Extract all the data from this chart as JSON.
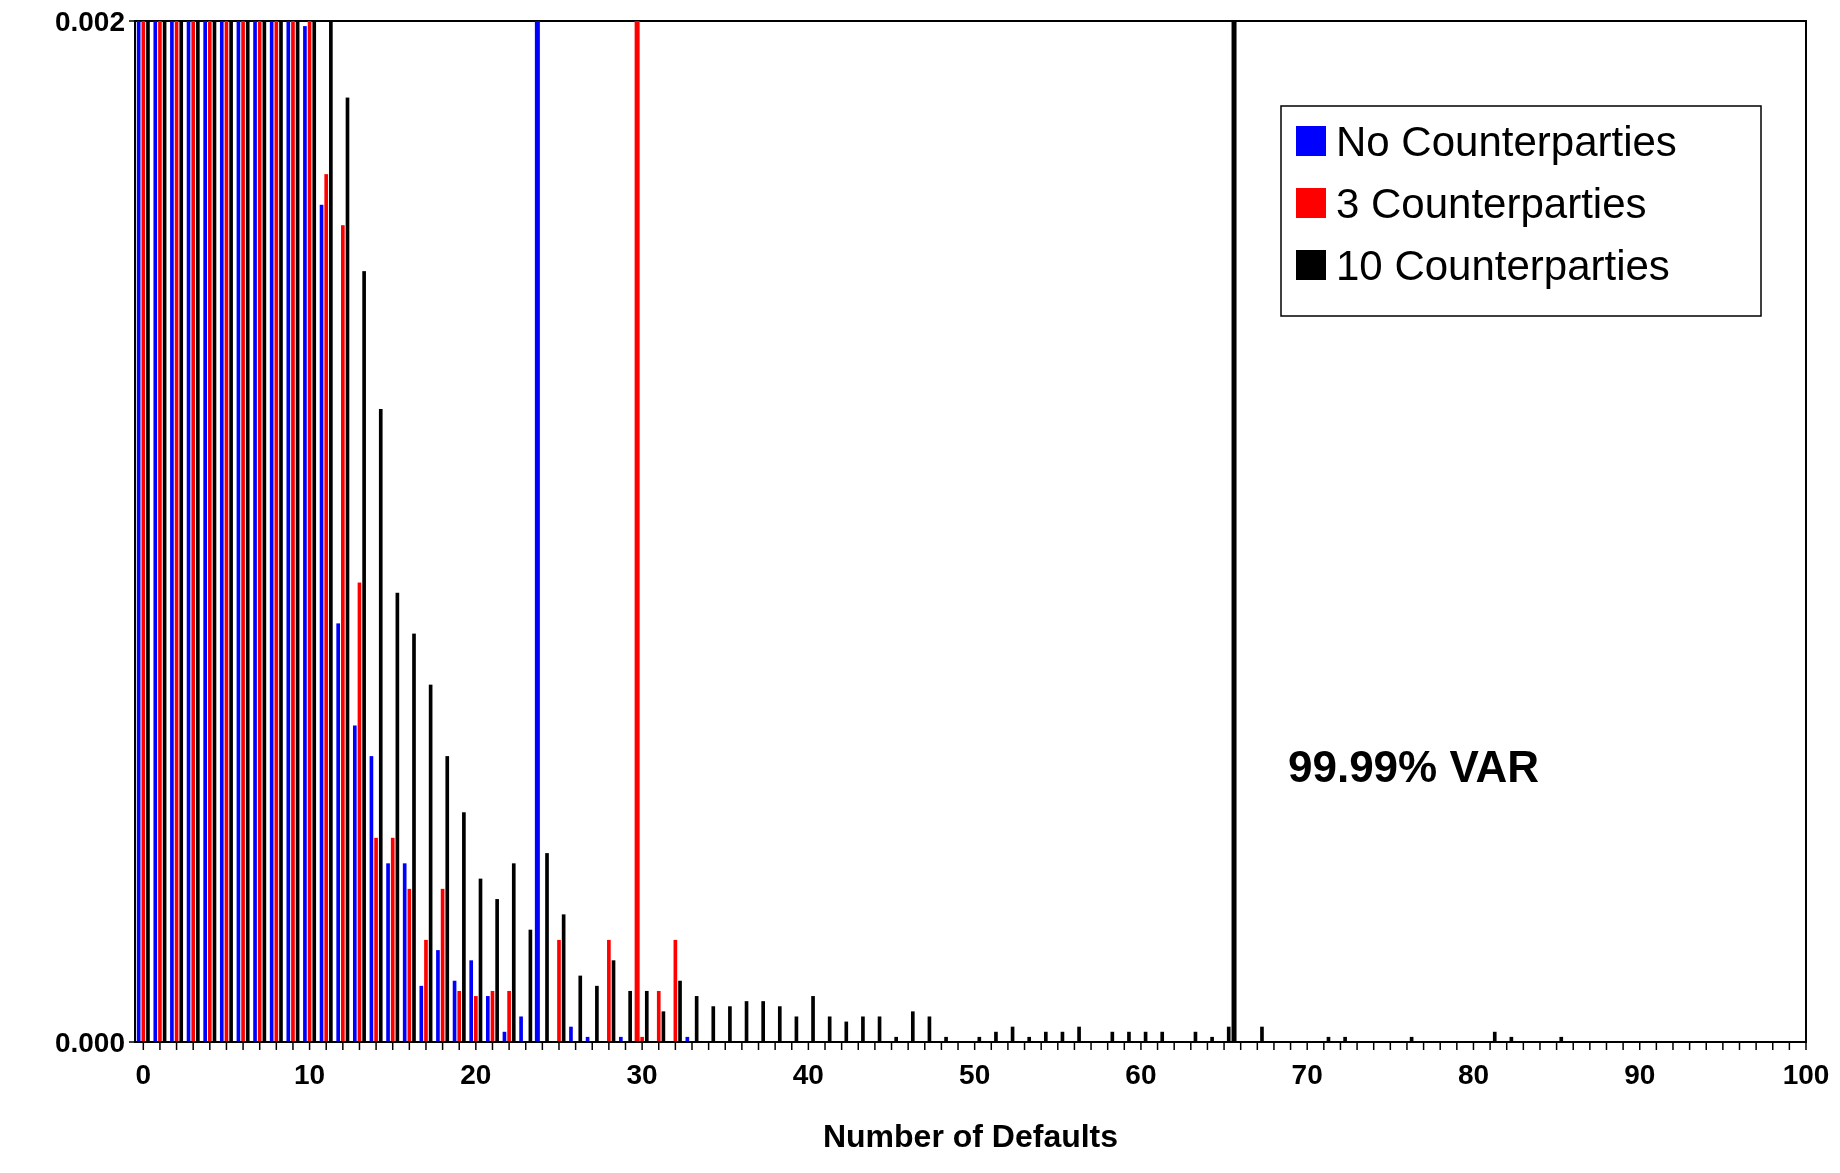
{
  "chart_data": {
    "type": "bar",
    "xlabel": "Number of Defaults",
    "x": [
      0,
      1,
      2,
      3,
      4,
      5,
      6,
      7,
      8,
      9,
      10,
      11,
      12,
      13,
      14,
      15,
      16,
      17,
      18,
      19,
      20,
      21,
      22,
      23,
      24,
      25,
      26,
      27,
      28,
      29,
      30,
      31,
      32,
      33,
      34,
      35,
      36,
      37,
      38,
      39,
      40,
      41,
      42,
      43,
      44,
      45,
      46,
      47,
      48,
      49,
      50,
      51,
      52,
      53,
      54,
      55,
      56,
      57,
      58,
      59,
      60,
      61,
      62,
      63,
      64,
      65,
      66,
      67,
      68,
      69,
      70,
      71,
      72,
      73,
      74,
      75,
      76,
      77,
      78,
      79,
      80,
      81,
      82,
      83,
      84,
      85
    ],
    "series": [
      {
        "name": "No Counterparties",
        "color": "#0000ff",
        "values": [
          0.002,
          0.002,
          0.002,
          0.002,
          0.002,
          0.002,
          0.002,
          0.002,
          0.002,
          0.002,
          0.00199,
          0.00164,
          0.00082,
          0.00062,
          0.00056,
          0.00035,
          0.00035,
          0.00011,
          0.00018,
          0.00012,
          0.00016,
          9e-05,
          2e-05,
          5e-05,
          null,
          0,
          3e-05,
          1e-05,
          0,
          1e-05,
          null,
          0,
          0,
          1e-05,
          0,
          0,
          0,
          0,
          0,
          0,
          0,
          0,
          0,
          0,
          0,
          0,
          0,
          0,
          0,
          0,
          0,
          0,
          0,
          0,
          0,
          0,
          0,
          0,
          0,
          0,
          0,
          0,
          0,
          0,
          0,
          0,
          0,
          0,
          0,
          0,
          0,
          0,
          0,
          0,
          0,
          0,
          0,
          0,
          0,
          0,
          0,
          0,
          0,
          0,
          0,
          0
        ]
      },
      {
        "name": "3 Counterparties",
        "color": "#ff0000",
        "values": [
          0.002,
          0.002,
          0.002,
          0.002,
          0.002,
          0.002,
          0.002,
          0.002,
          0.002,
          0.002,
          0.002,
          0.0017,
          0.0016,
          0.0009,
          0.0004,
          0.0004,
          0.0003,
          0.0002,
          0.0003,
          0.0001,
          9e-05,
          0.0001,
          0.0001,
          0,
          0,
          0.0002,
          0,
          0,
          0.0002,
          0,
          1e-05,
          0.0001,
          0.0002,
          0,
          0,
          0,
          0,
          0,
          0,
          0,
          0,
          0,
          0,
          0,
          0,
          0,
          0,
          0,
          0,
          0,
          0,
          0,
          0,
          0,
          0,
          0,
          0,
          0,
          0,
          0,
          0,
          0,
          0,
          0,
          0,
          0,
          0,
          0,
          0,
          0,
          0,
          0,
          0,
          0,
          0,
          0,
          0,
          0,
          0,
          0,
          0,
          0,
          0,
          0,
          0,
          0
        ]
      },
      {
        "name": "10 Counterparties",
        "color": "#000000",
        "values": [
          0.002,
          0.002,
          0.002,
          0.002,
          0.002,
          0.002,
          0.002,
          0.002,
          0.002,
          0.002,
          0.002,
          0.002,
          0.00185,
          0.00151,
          0.00124,
          0.00088,
          0.0008,
          0.0007,
          0.00056,
          0.00045,
          0.00032,
          0.00028,
          0.00035,
          0.00022,
          0.00037,
          0.00025,
          0.00013,
          0.00011,
          0.00016,
          0.0001,
          0.0001,
          6e-05,
          0.00012,
          9e-05,
          7e-05,
          7e-05,
          8e-05,
          8e-05,
          7e-05,
          5e-05,
          9e-05,
          5e-05,
          4e-05,
          5e-05,
          5e-05,
          1e-05,
          6e-05,
          5e-05,
          1e-05,
          0,
          1e-05,
          2e-05,
          3e-05,
          1e-05,
          2e-05,
          2e-05,
          3e-05,
          0,
          2e-05,
          2e-05,
          2e-05,
          2e-05,
          0,
          2e-05,
          1e-05,
          3e-05,
          0,
          3e-05,
          0,
          0,
          0,
          1e-05,
          1e-05,
          0,
          0,
          0,
          1e-05,
          0,
          0,
          0,
          0,
          2e-05,
          1e-05,
          0,
          0,
          1e-05
        ]
      }
    ],
    "ref_lines": [
      {
        "axis": "x",
        "value": 23.7,
        "color": "#0000ff"
      },
      {
        "axis": "x",
        "value": 29.7,
        "color": "#ff0000"
      },
      {
        "axis": "x",
        "value": 65.6,
        "color": "#000000"
      }
    ],
    "annotations": [
      "99.99% VAR"
    ],
    "xlim": [
      -0.5,
      100
    ],
    "xticks": [
      0,
      {
        "value": 1,
        "label": null
      },
      {
        "value": 2,
        "label": null
      },
      {
        "value": 3,
        "label": null
      },
      {
        "value": 4,
        "label": null
      },
      {
        "value": 5,
        "label": null
      },
      {
        "value": 6,
        "label": null
      },
      {
        "value": 7,
        "label": null
      },
      {
        "value": 8,
        "label": null
      },
      {
        "value": 9,
        "label": null
      },
      10,
      {
        "value": 11,
        "label": null
      },
      {
        "value": 12,
        "label": null
      },
      {
        "value": 13,
        "label": null
      },
      {
        "value": 14,
        "label": null
      },
      {
        "value": 15,
        "label": null
      },
      {
        "value": 16,
        "label": null
      },
      {
        "value": 17,
        "label": null
      },
      {
        "value": 18,
        "label": null
      },
      {
        "value": 19,
        "label": null
      },
      20,
      {
        "value": 21,
        "label": null
      },
      {
        "value": 22,
        "label": null
      },
      {
        "value": 23,
        "label": null
      },
      {
        "value": 24,
        "label": null
      },
      {
        "value": 25,
        "label": null
      },
      {
        "value": 26,
        "label": null
      },
      {
        "value": 27,
        "label": null
      },
      {
        "value": 28,
        "label": null
      },
      {
        "value": 29,
        "label": null
      },
      30,
      {
        "value": 31,
        "label": null
      },
      {
        "value": 32,
        "label": null
      },
      {
        "value": 33,
        "label": null
      },
      {
        "value": 34,
        "label": null
      },
      {
        "value": 35,
        "label": null
      },
      {
        "value": 36,
        "label": null
      },
      {
        "value": 37,
        "label": null
      },
      {
        "value": 38,
        "label": null
      },
      {
        "value": 39,
        "label": null
      },
      40,
      {
        "value": 41,
        "label": null
      },
      {
        "value": 42,
        "label": null
      },
      {
        "value": 43,
        "label": null
      },
      {
        "value": 44,
        "label": null
      },
      {
        "value": 45,
        "label": null
      },
      {
        "value": 46,
        "label": null
      },
      {
        "value": 47,
        "label": null
      },
      {
        "value": 48,
        "label": null
      },
      {
        "value": 49,
        "label": null
      },
      50,
      {
        "value": 51,
        "label": null
      },
      {
        "value": 52,
        "label": null
      },
      {
        "value": 53,
        "label": null
      },
      {
        "value": 54,
        "label": null
      },
      {
        "value": 55,
        "label": null
      },
      {
        "value": 56,
        "label": null
      },
      {
        "value": 57,
        "label": null
      },
      {
        "value": 58,
        "label": null
      },
      {
        "value": 59,
        "label": null
      },
      60,
      {
        "value": 61,
        "label": null
      },
      {
        "value": 62,
        "label": null
      },
      {
        "value": 63,
        "label": null
      },
      {
        "value": 64,
        "label": null
      },
      {
        "value": 65,
        "label": null
      },
      {
        "value": 66,
        "label": null
      },
      {
        "value": 67,
        "label": null
      },
      {
        "value": 68,
        "label": null
      },
      {
        "value": 69,
        "label": null
      },
      70,
      {
        "value": 71,
        "label": null
      },
      {
        "value": 72,
        "label": null
      },
      {
        "value": 73,
        "label": null
      },
      {
        "value": 74,
        "label": null
      },
      {
        "value": 75,
        "label": null
      },
      {
        "value": 76,
        "label": null
      },
      {
        "value": 77,
        "label": null
      },
      {
        "value": 78,
        "label": null
      },
      {
        "value": 79,
        "label": null
      },
      80,
      {
        "value": 81,
        "label": null
      },
      {
        "value": 82,
        "label": null
      },
      {
        "value": 83,
        "label": null
      },
      {
        "value": 84,
        "label": null
      },
      {
        "value": 85,
        "label": null
      },
      {
        "value": 86,
        "label": null
      },
      {
        "value": 87,
        "label": null
      },
      {
        "value": 88,
        "label": null
      },
      {
        "value": 89,
        "label": null
      },
      90,
      {
        "value": 91,
        "label": null
      },
      {
        "value": 92,
        "label": null
      },
      {
        "value": 93,
        "label": null
      },
      {
        "value": 94,
        "label": null
      },
      {
        "value": 95,
        "label": null
      },
      {
        "value": 96,
        "label": null
      },
      {
        "value": 97,
        "label": null
      },
      {
        "value": 98,
        "label": null
      },
      {
        "value": 99,
        "label": null
      },
      100
    ],
    "ylim": [
      0,
      0.002
    ],
    "yticks": [
      {
        "value": 0,
        "label": "0.000"
      },
      {
        "value": 0.002,
        "label": "0.002"
      }
    ],
    "legend": "top right"
  }
}
